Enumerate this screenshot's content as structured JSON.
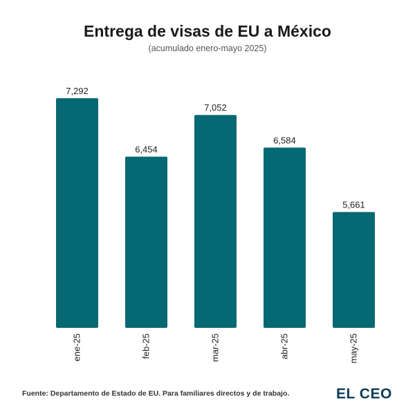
{
  "chart_data": {
    "type": "bar",
    "title": "Entrega de visas de EU a México",
    "subtitle": "(acumulado enero-mayo 2025)",
    "categories": [
      "ene-25",
      "feb-25",
      "mar-25",
      "abr-25",
      "may-25"
    ],
    "values": [
      7292,
      6454,
      7052,
      6584,
      5661
    ],
    "value_labels": [
      "7,292",
      "6,454",
      "7,052",
      "6,584",
      "5,661"
    ],
    "xlabel": "",
    "ylabel": "",
    "ylim": [
      4000,
      7500
    ],
    "grid": false,
    "bar_color": "#056872"
  },
  "footer": {
    "source": "Fuente: Departamento de Estado de EU. Para familiares directos y de trabajo."
  },
  "brand": {
    "name": "EL CEO",
    "color": "#0d3d57"
  }
}
